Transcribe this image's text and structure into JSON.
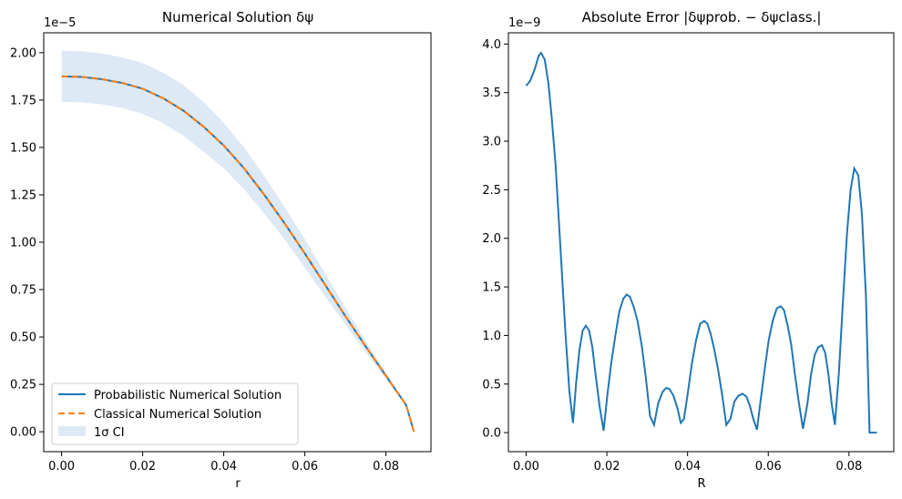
{
  "chart_data": [
    {
      "type": "line",
      "title": "Numerical Solution δψ",
      "xlabel": "r",
      "ylabel": "",
      "y_scale_label": "1e−5",
      "xlim": [
        -0.0044,
        0.0911
      ],
      "ylim": [
        -0.105,
        2.105
      ],
      "xticks": [
        0.0,
        0.02,
        0.04,
        0.06,
        0.08
      ],
      "xtick_labels": [
        "0.00",
        "0.02",
        "0.04",
        "0.06",
        "0.08"
      ],
      "yticks": [
        0.0,
        0.25,
        0.5,
        0.75,
        1.0,
        1.25,
        1.5,
        1.75,
        2.0
      ],
      "ytick_labels": [
        "0.00",
        "0.25",
        "0.50",
        "0.75",
        "1.00",
        "1.25",
        "1.50",
        "1.75",
        "2.00"
      ],
      "grid": false,
      "legend_position": "lower-left",
      "series": [
        {
          "name": "Probabilistic Numerical Solution",
          "style": "solid",
          "color": "#1f77b4",
          "x": [
            0.0,
            0.005,
            0.01,
            0.015,
            0.02,
            0.025,
            0.03,
            0.035,
            0.04,
            0.045,
            0.05,
            0.055,
            0.06,
            0.065,
            0.07,
            0.075,
            0.08,
            0.085,
            0.0869
          ],
          "y": [
            1.875,
            1.872,
            1.86,
            1.84,
            1.81,
            1.76,
            1.695,
            1.61,
            1.51,
            1.39,
            1.25,
            1.1,
            0.94,
            0.775,
            0.61,
            0.45,
            0.295,
            0.14,
            0.0
          ]
        },
        {
          "name": "Classical Numerical Solution",
          "style": "dashed",
          "color": "#ff7f0e",
          "x": [
            0.0,
            0.005,
            0.01,
            0.015,
            0.02,
            0.025,
            0.03,
            0.035,
            0.04,
            0.045,
            0.05,
            0.055,
            0.06,
            0.065,
            0.07,
            0.075,
            0.08,
            0.085,
            0.0869
          ],
          "y": [
            1.875,
            1.872,
            1.86,
            1.84,
            1.81,
            1.76,
            1.695,
            1.61,
            1.51,
            1.39,
            1.25,
            1.1,
            0.94,
            0.775,
            0.61,
            0.45,
            0.295,
            0.14,
            0.0
          ]
        }
      ],
      "band": {
        "name": "1σ CI",
        "color": "#c6dbee",
        "x": [
          0.0,
          0.005,
          0.01,
          0.015,
          0.02,
          0.025,
          0.03,
          0.035,
          0.04,
          0.045,
          0.05,
          0.055,
          0.06,
          0.065,
          0.07,
          0.075,
          0.08,
          0.085,
          0.0869
        ],
        "upper": [
          2.01,
          2.008,
          1.995,
          1.975,
          1.945,
          1.895,
          1.83,
          1.74,
          1.63,
          1.5,
          1.35,
          1.185,
          1.015,
          0.835,
          0.655,
          0.48,
          0.31,
          0.145,
          0.0
        ],
        "lower": [
          1.74,
          1.738,
          1.727,
          1.708,
          1.677,
          1.628,
          1.562,
          1.478,
          1.39,
          1.28,
          1.15,
          1.015,
          0.865,
          0.715,
          0.565,
          0.42,
          0.28,
          0.135,
          0.0
        ]
      }
    },
    {
      "type": "line",
      "title": "Absolute Error |δψprob. − δψclass.|",
      "xlabel": "R",
      "ylabel": "",
      "y_scale_label": "1e−9",
      "xlim": [
        -0.0044,
        0.0911
      ],
      "ylim": [
        -0.196,
        4.116
      ],
      "xticks": [
        0.0,
        0.02,
        0.04,
        0.06,
        0.08
      ],
      "xtick_labels": [
        "0.00",
        "0.02",
        "0.04",
        "0.06",
        "0.08"
      ],
      "yticks": [
        0.0,
        0.5,
        1.0,
        1.5,
        2.0,
        2.5,
        3.0,
        3.5,
        4.0
      ],
      "ytick_labels": [
        "0.0",
        "0.5",
        "1.0",
        "1.5",
        "2.0",
        "2.5",
        "3.0",
        "3.5",
        "4.0"
      ],
      "grid": false,
      "series": [
        {
          "name": "",
          "color": "#1f77b4",
          "x": [
            0.0,
            0.001,
            0.0022,
            0.0031,
            0.0037,
            0.0046,
            0.0055,
            0.0063,
            0.0073,
            0.0085,
            0.0097,
            0.0107,
            0.0116,
            0.0124,
            0.0132,
            0.014,
            0.0148,
            0.0156,
            0.0164,
            0.0172,
            0.0182,
            0.0192,
            0.0201,
            0.0211,
            0.0221,
            0.0231,
            0.0241,
            0.0249,
            0.0257,
            0.0266,
            0.0276,
            0.0287,
            0.0297,
            0.0307,
            0.0317,
            0.0327,
            0.0338,
            0.0347,
            0.0355,
            0.0365,
            0.0375,
            0.0383,
            0.0391,
            0.0401,
            0.0411,
            0.0421,
            0.0431,
            0.0441,
            0.0449,
            0.0457,
            0.0466,
            0.0476,
            0.0486,
            0.0496,
            0.0506,
            0.0516,
            0.0526,
            0.0536,
            0.0546,
            0.0554,
            0.0563,
            0.0572,
            0.058,
            0.059,
            0.0601,
            0.0611,
            0.0621,
            0.0631,
            0.0639,
            0.0648,
            0.0657,
            0.0666,
            0.0676,
            0.0686,
            0.0697,
            0.0706,
            0.0715,
            0.0724,
            0.0733,
            0.0741,
            0.0749,
            0.0757,
            0.0765,
            0.0775,
            0.0785,
            0.0795,
            0.0804,
            0.0813,
            0.0823,
            0.0832,
            0.0842,
            0.0851,
            0.086,
            0.0869
          ],
          "y": [
            3.57,
            3.62,
            3.75,
            3.88,
            3.91,
            3.84,
            3.6,
            3.26,
            2.75,
            1.9,
            1.05,
            0.43,
            0.1,
            0.52,
            0.85,
            1.05,
            1.1,
            1.05,
            0.88,
            0.6,
            0.27,
            0.02,
            0.38,
            0.72,
            1.0,
            1.25,
            1.38,
            1.42,
            1.4,
            1.3,
            1.15,
            0.88,
            0.55,
            0.17,
            0.08,
            0.3,
            0.42,
            0.46,
            0.45,
            0.38,
            0.25,
            0.1,
            0.14,
            0.42,
            0.72,
            0.95,
            1.12,
            1.15,
            1.12,
            1.02,
            0.86,
            0.64,
            0.38,
            0.08,
            0.14,
            0.32,
            0.38,
            0.4,
            0.37,
            0.28,
            0.14,
            0.03,
            0.3,
            0.62,
            0.95,
            1.15,
            1.28,
            1.3,
            1.26,
            1.1,
            0.9,
            0.6,
            0.3,
            0.04,
            0.3,
            0.6,
            0.8,
            0.88,
            0.9,
            0.82,
            0.6,
            0.3,
            0.08,
            0.62,
            1.35,
            2.05,
            2.5,
            2.72,
            2.65,
            2.25,
            1.4,
            0.0,
            0.0,
            0.0
          ]
        }
      ]
    }
  ]
}
